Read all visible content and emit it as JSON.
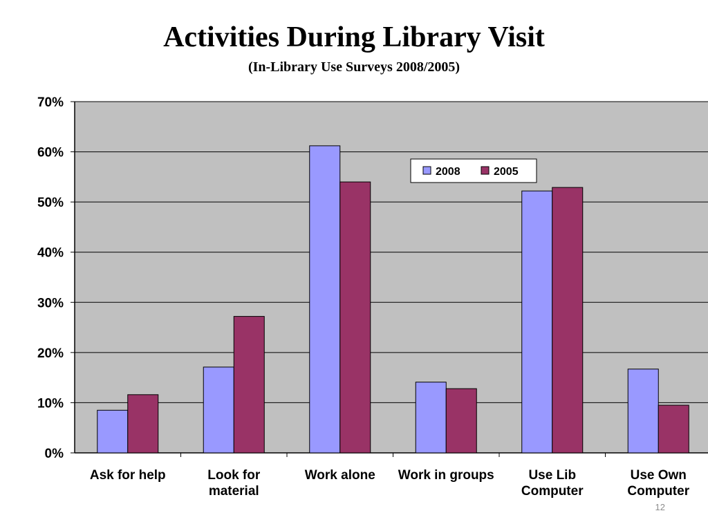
{
  "slide": {
    "title": "Activities During Library Visit",
    "subtitle": "(In-Library Use Surveys 2008/2005)",
    "page_number": "12"
  },
  "chart_data": {
    "type": "bar",
    "title": "",
    "xlabel": "",
    "ylabel": "",
    "categories": [
      [
        "Ask for help"
      ],
      [
        "Look for",
        "material"
      ],
      [
        "Work alone"
      ],
      [
        "Work in groups"
      ],
      [
        "Use Lib",
        "Computer"
      ],
      [
        "Use Own",
        "Computer"
      ]
    ],
    "series": [
      {
        "name": "2008",
        "color": "#9999ff",
        "values": [
          8.5,
          17.1,
          61.2,
          14.1,
          52.2,
          16.7
        ]
      },
      {
        "name": "2005",
        "color": "#993366",
        "values": [
          11.6,
          27.2,
          54.0,
          12.8,
          52.9,
          9.5
        ]
      }
    ],
    "ylim": [
      0,
      70
    ],
    "yticks": [
      "0%",
      "10%",
      "20%",
      "30%",
      "40%",
      "50%",
      "60%",
      "70%"
    ],
    "grid": true,
    "legend_position": "top-right",
    "plot_background": "#c0c0c0"
  }
}
